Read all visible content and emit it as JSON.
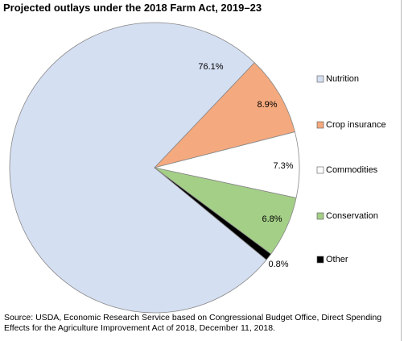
{
  "chart_data": {
    "type": "pie",
    "title": "Projected outlays under the 2018 Farm Act, 2019–23",
    "categories": [
      "Nutrition",
      "Crop insurance",
      "Commodities",
      "Conservation",
      "Other"
    ],
    "values": [
      76.1,
      8.9,
      7.3,
      6.8,
      0.8
    ],
    "value_labels": [
      "76.1%",
      "8.9%",
      "7.3%",
      "6.8%",
      "0.8%"
    ],
    "colors": [
      "#d5dff2",
      "#f4a97e",
      "#ffffff",
      "#a4cf87",
      "#000000"
    ],
    "legend": "right",
    "source": "Source: USDA, Economic Research Service based on Congressional Budget Office, Direct Spending Effects for the Agriculture Improvement Act of 2018, December 11, 2018."
  }
}
